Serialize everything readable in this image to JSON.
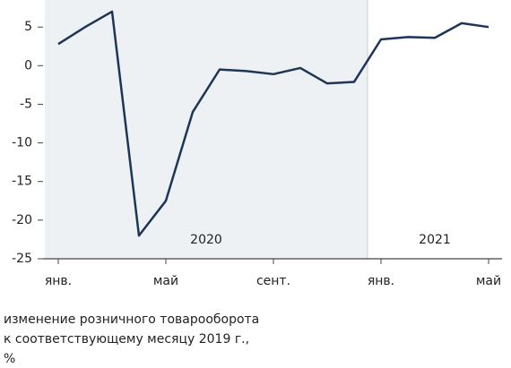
{
  "chart_data": {
    "type": "line",
    "categories": [
      "янв.",
      null,
      null,
      null,
      "май",
      null,
      null,
      null,
      "сент.",
      null,
      null,
      null,
      "янв.",
      null,
      null,
      null,
      "май"
    ],
    "series": [
      {
        "color": "#1d3557",
        "values": [
          2.8,
          5.0,
          7.0,
          -22.0,
          -17.5,
          -6.0,
          -0.5,
          -0.7,
          -1.1,
          -0.3,
          -2.3,
          -2.1,
          3.4,
          3.7,
          3.6,
          5.5,
          5.0
        ]
      }
    ],
    "ylim": [
      -25,
      8.5
    ],
    "yticks": [
      -25,
      -20,
      -15,
      -10,
      -5,
      0,
      5
    ],
    "periods": [
      {
        "label": "2020",
        "from": 0,
        "to": 11,
        "color": "#eef1f3"
      },
      {
        "label": "2021",
        "from": 12,
        "to": 16,
        "color": "#ffffff"
      }
    ],
    "caption": [
      "изменение розничного товарооборота",
      "к соответствующему месяцу 2019 г.,",
      "%"
    ]
  }
}
